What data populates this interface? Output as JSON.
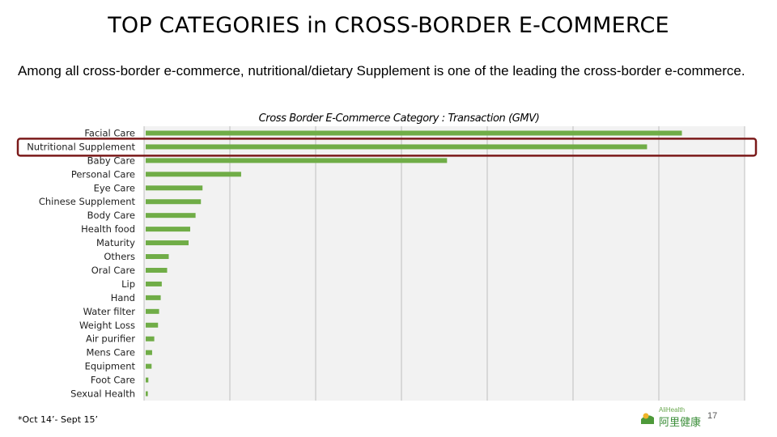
{
  "slide": {
    "title": "TOP CATEGORIES in CROSS-BORDER E-COMMERCE",
    "subtitle": "Among all cross-border e-commerce, nutritional/dietary Supplement is one of the leading the cross-border e-commerce.",
    "footnote": "*Oct 14’- Sept 15’",
    "page_number": "17",
    "logo": {
      "small_text": "AliHealth",
      "main_text": "阿里健康"
    }
  },
  "colors": {
    "bar": "#70ad47",
    "highlight_border": "#7b1a1a",
    "grid": "#bfbfbf",
    "plot_bg": "#f2f2f2"
  },
  "chart_data": {
    "type": "bar",
    "orientation": "horizontal",
    "title": "Cross Border E-Commerce Category : Transaction (GMV)",
    "categories": [
      "Facial Care",
      "Nutritional Supplement",
      "Baby Care",
      "Personal Care",
      "Eye Care",
      "Chinese Supplement",
      "Body Care",
      "Health food",
      "Maturity",
      "Others",
      "Oral Care",
      "Lip",
      "Hand",
      "Water filter",
      "Weight Loss",
      "Air purifier",
      "Mens Care",
      "Equipment",
      "Foot Care",
      "Sexual Health"
    ],
    "values": [
      100,
      93.5,
      56.2,
      17.8,
      10.6,
      10.3,
      9.3,
      8.3,
      8.0,
      4.3,
      4.0,
      3.0,
      2.8,
      2.5,
      2.3,
      1.6,
      1.2,
      1.1,
      0.5,
      0.4
    ],
    "xlim": [
      0,
      112
    ],
    "grid": true,
    "highlighted_category": "Nutritional Supplement"
  }
}
